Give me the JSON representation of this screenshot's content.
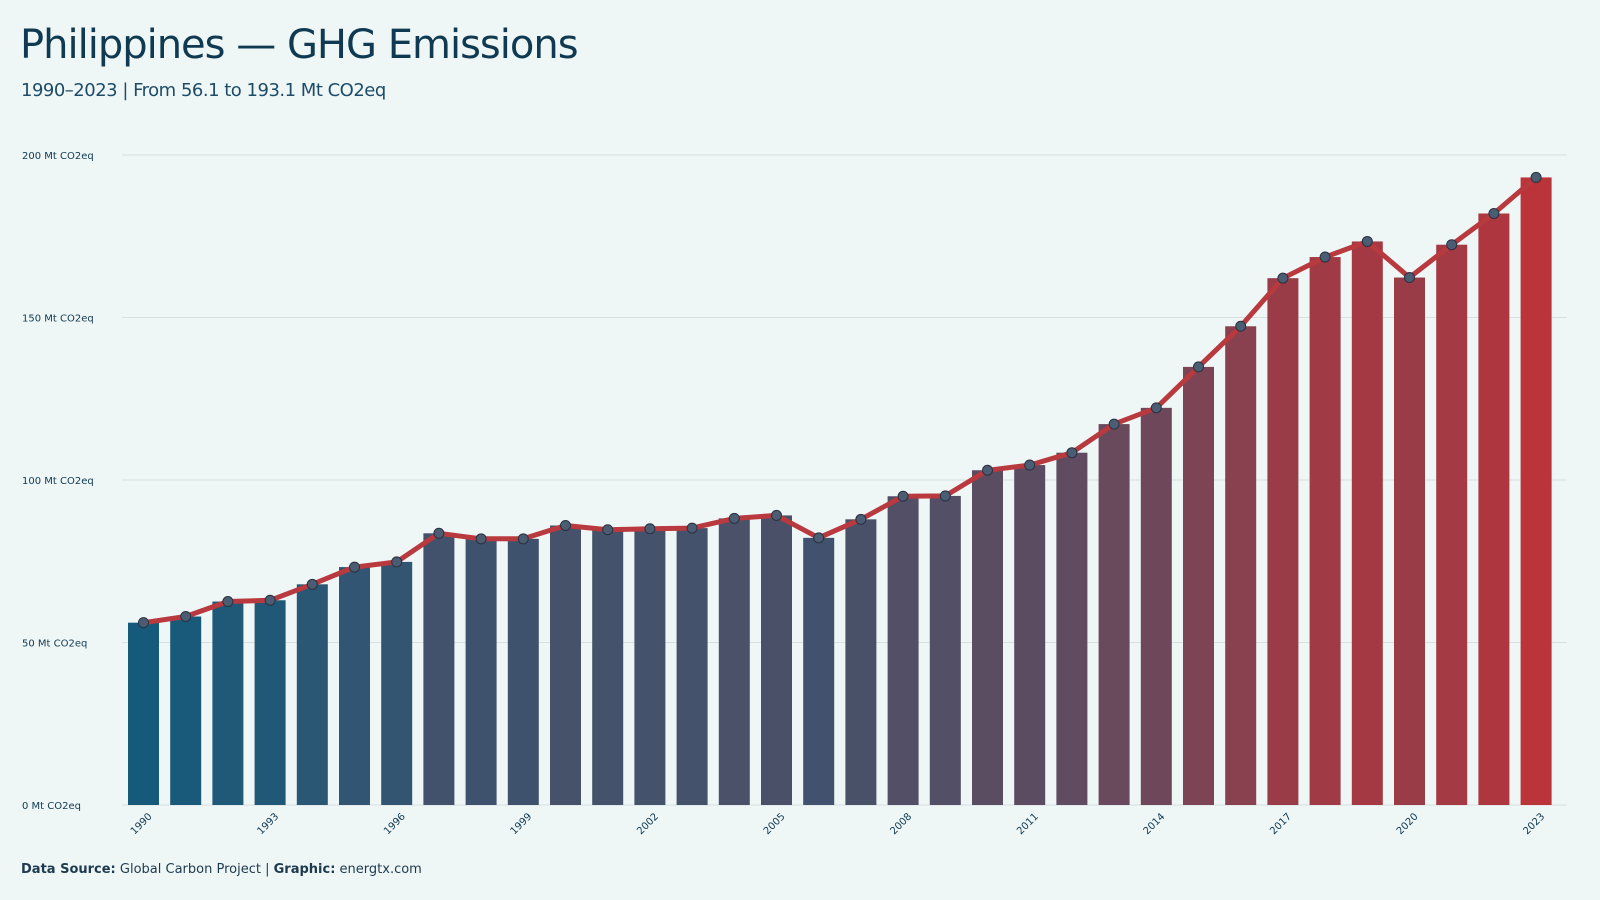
{
  "header": {
    "title": "Philippines — GHG Emissions",
    "subtitle": "1990–2023 | From 56.1 to 193.1 Mt CO2eq"
  },
  "footer": {
    "source_label": "Data Source:",
    "source_value": "Global Carbon Project",
    "separator": "|",
    "graphic_label": "Graphic:",
    "graphic_value": "energtx.com"
  },
  "colors": {
    "background": "#eff6f6",
    "bar_start": "#165a7b",
    "bar_mid": "#4d5068",
    "bar_end": "#ba343a",
    "line": "#b8393e",
    "marker_fill": "#4b5d73",
    "gridline": "#d7dfe1",
    "text": "#0f3a52"
  },
  "chart_data": {
    "type": "bar",
    "overlay": "line-with-markers",
    "unit": "Mt CO2eq",
    "x": [
      1990,
      1991,
      1992,
      1993,
      1994,
      1995,
      1996,
      1997,
      1998,
      1999,
      2000,
      2001,
      2002,
      2003,
      2004,
      2005,
      2006,
      2007,
      2008,
      2009,
      2010,
      2011,
      2012,
      2013,
      2014,
      2015,
      2016,
      2017,
      2018,
      2019,
      2020,
      2021,
      2022,
      2023
    ],
    "values": [
      56.1,
      58.0,
      62.6,
      63.0,
      67.9,
      73.2,
      74.8,
      83.6,
      81.9,
      81.9,
      86.0,
      84.7,
      85.0,
      85.2,
      88.2,
      89.1,
      82.2,
      87.9,
      95.0,
      95.1,
      103.0,
      104.6,
      108.4,
      117.2,
      122.2,
      134.8,
      147.3,
      162.1,
      168.6,
      173.4,
      162.3,
      172.4,
      182.0,
      193.1
    ],
    "ylim": [
      0,
      200
    ],
    "y_ticks": [
      0,
      50,
      100,
      150,
      200
    ],
    "y_tick_labels": [
      "0 Mt CO2eq",
      "50 Mt CO2eq",
      "100 Mt CO2eq",
      "150 Mt CO2eq",
      "200 Mt CO2eq"
    ],
    "x_tick_labels": [
      "1990",
      "1993",
      "1996",
      "1999",
      "2002",
      "2005",
      "2008",
      "2011",
      "2014",
      "2017",
      "2020",
      "2023"
    ],
    "grid": "horizontal",
    "legend": "none"
  }
}
